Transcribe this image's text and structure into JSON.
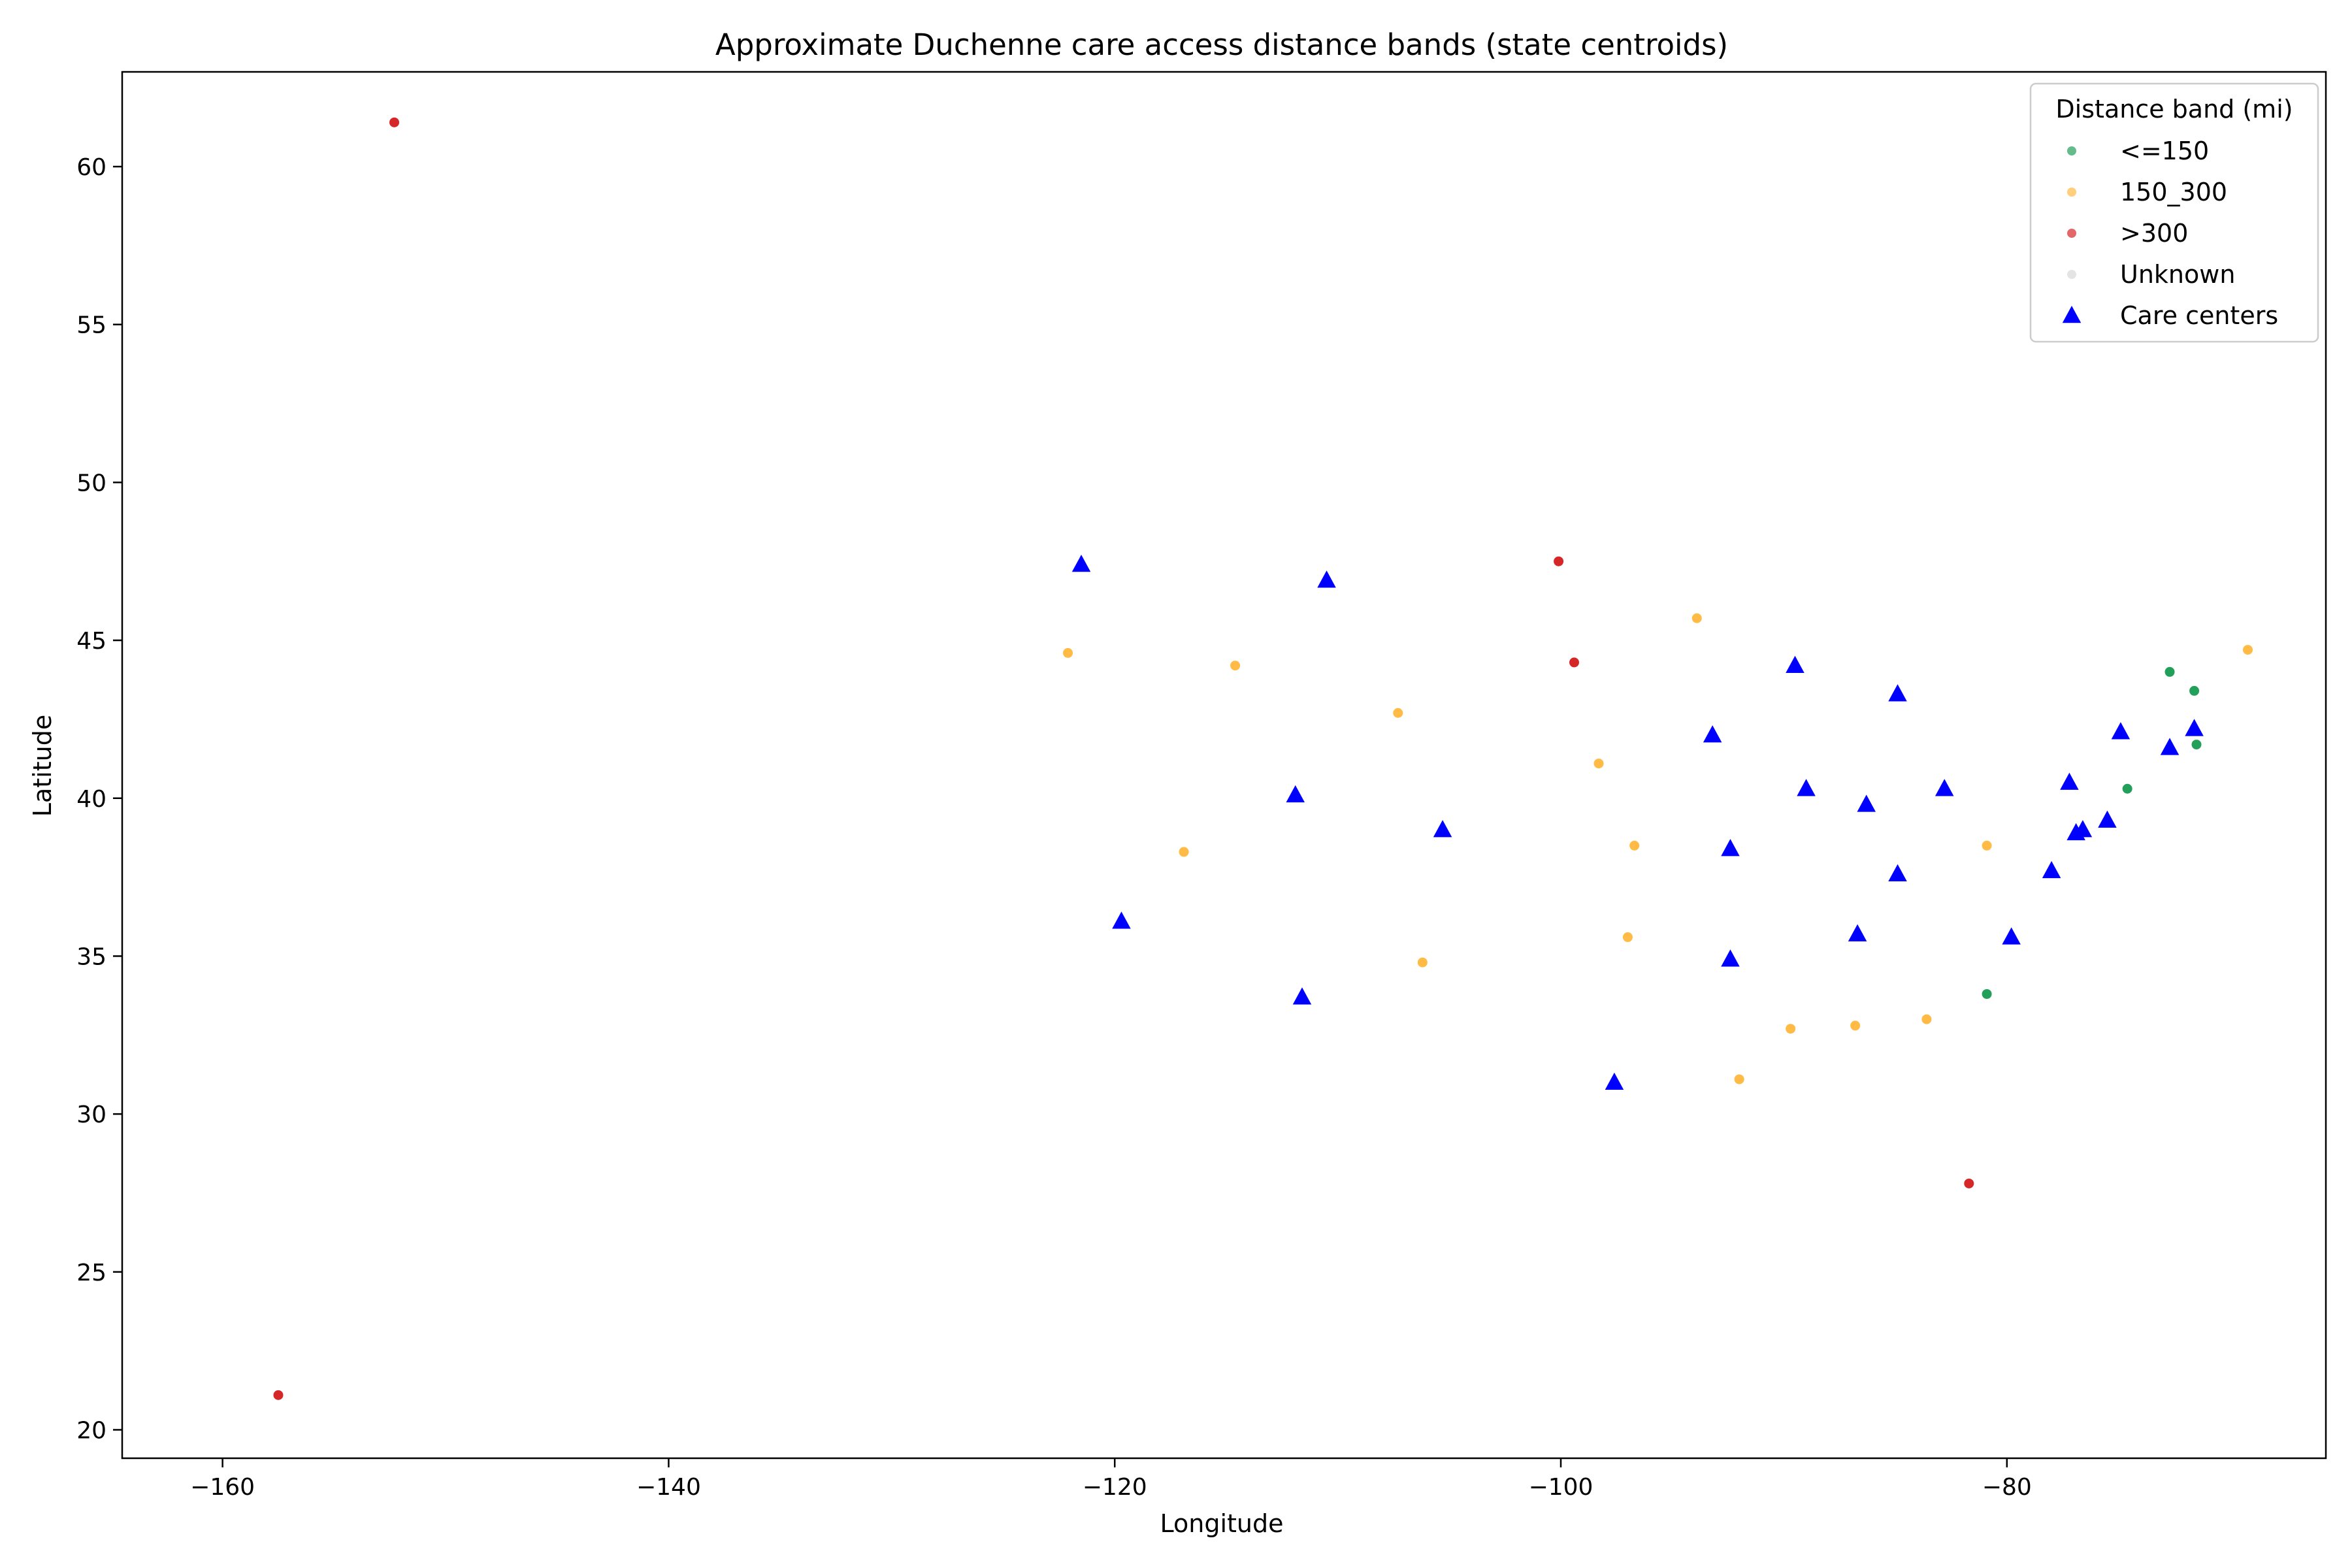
{
  "chart_data": {
    "type": "scatter",
    "title": "Approximate Duchenne care access distance bands (state centroids)",
    "xlabel": "Longitude",
    "ylabel": "Latitude",
    "xlim": [
      -164.5,
      -65.7
    ],
    "ylim": [
      19.1,
      63.0
    ],
    "xticks": [
      -160,
      -140,
      -120,
      -100,
      -80
    ],
    "yticks": [
      20,
      25,
      30,
      35,
      40,
      45,
      50,
      55,
      60
    ],
    "grid": false,
    "legend": {
      "title": "Distance band (mi)",
      "placement": "top-right",
      "entries": [
        "<=150",
        "150_300",
        ">300",
        "Unknown",
        "Care centers"
      ]
    },
    "series": [
      {
        "name": "<=150",
        "marker": "circle",
        "color": "#22a05a",
        "points": [
          {
            "x": -72.7,
            "y": 44.0
          },
          {
            "x": -71.6,
            "y": 43.4
          },
          {
            "x": -71.5,
            "y": 41.7
          },
          {
            "x": -74.6,
            "y": 40.3
          },
          {
            "x": -80.9,
            "y": 33.8
          }
        ]
      },
      {
        "name": "150_300",
        "marker": "circle",
        "color": "#ffbb45",
        "points": [
          {
            "x": -122.1,
            "y": 44.6
          },
          {
            "x": -114.6,
            "y": 44.2
          },
          {
            "x": -107.3,
            "y": 42.7
          },
          {
            "x": -116.9,
            "y": 38.3
          },
          {
            "x": -106.2,
            "y": 34.8
          },
          {
            "x": -93.9,
            "y": 45.7
          },
          {
            "x": -98.3,
            "y": 41.1
          },
          {
            "x": -96.7,
            "y": 38.5
          },
          {
            "x": -97.0,
            "y": 35.6
          },
          {
            "x": -92.0,
            "y": 31.1
          },
          {
            "x": -89.7,
            "y": 32.7
          },
          {
            "x": -86.8,
            "y": 32.8
          },
          {
            "x": -83.6,
            "y": 33.0
          },
          {
            "x": -80.9,
            "y": 38.5
          },
          {
            "x": -69.2,
            "y": 44.7
          }
        ]
      },
      {
        "name": ">300",
        "marker": "circle",
        "color": "#d62728",
        "points": [
          {
            "x": -152.3,
            "y": 61.4
          },
          {
            "x": -157.5,
            "y": 21.1
          },
          {
            "x": -100.1,
            "y": 47.5
          },
          {
            "x": -99.4,
            "y": 44.3
          },
          {
            "x": -81.7,
            "y": 27.8
          }
        ]
      },
      {
        "name": "Unknown",
        "marker": "circle",
        "color": "#d9d9d9",
        "points": []
      },
      {
        "name": "Care centers",
        "marker": "triangle",
        "color": "#0000ff",
        "points": [
          {
            "x": -121.5,
            "y": 47.4
          },
          {
            "x": -110.5,
            "y": 46.9
          },
          {
            "x": -119.7,
            "y": 36.1
          },
          {
            "x": -111.9,
            "y": 40.1
          },
          {
            "x": -111.6,
            "y": 33.7
          },
          {
            "x": -105.3,
            "y": 39.0
          },
          {
            "x": -97.6,
            "y": 31.0
          },
          {
            "x": -93.2,
            "y": 42.0
          },
          {
            "x": -92.4,
            "y": 38.4
          },
          {
            "x": -92.4,
            "y": 34.9
          },
          {
            "x": -89.5,
            "y": 44.2
          },
          {
            "x": -89.0,
            "y": 40.3
          },
          {
            "x": -86.3,
            "y": 39.8
          },
          {
            "x": -84.9,
            "y": 43.3
          },
          {
            "x": -82.8,
            "y": 40.3
          },
          {
            "x": -86.7,
            "y": 35.7
          },
          {
            "x": -84.9,
            "y": 37.6
          },
          {
            "x": -79.8,
            "y": 35.6
          },
          {
            "x": -78.0,
            "y": 37.7
          },
          {
            "x": -77.2,
            "y": 40.5
          },
          {
            "x": -76.6,
            "y": 39.0
          },
          {
            "x": -76.9,
            "y": 38.9
          },
          {
            "x": -75.5,
            "y": 39.3
          },
          {
            "x": -74.9,
            "y": 42.1
          },
          {
            "x": -72.7,
            "y": 41.6
          },
          {
            "x": -71.6,
            "y": 42.2
          }
        ]
      }
    ]
  }
}
